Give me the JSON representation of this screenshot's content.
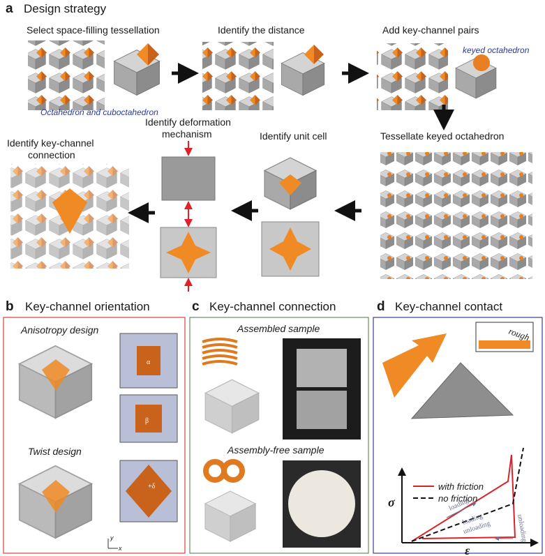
{
  "panel_a": {
    "letter": "a",
    "title": "Design strategy",
    "step1": "Select space-filling tessellation",
    "step1_note": "Octahedron and cuboctahedron",
    "step2": "Identify the distance",
    "step3": "Add key-channel pairs",
    "step3_note": "keyed octahedron",
    "step4": "Tessellate keyed octahedron",
    "step5": "Identify unit cell",
    "step6": [
      "Identify deformation",
      "mechanism"
    ],
    "step7": [
      "Identify key-channel",
      "connection"
    ]
  },
  "panel_b": {
    "letter": "b",
    "title": "Key-channel orientation",
    "designs": [
      "Anisotropy design",
      "Twist design"
    ],
    "angles": [
      "α",
      "β",
      "+δ"
    ],
    "axes": [
      "y",
      "x"
    ]
  },
  "panel_c": {
    "letter": "c",
    "title": "Key-channel connection",
    "samples": [
      "Assembled sample",
      "Assembly-free sample"
    ]
  },
  "panel_d": {
    "letter": "d",
    "title": "Key-channel contact",
    "inset": "rough",
    "legend": [
      "with friction",
      "no friction"
    ],
    "y_axis": "σ",
    "x_axis": "ε",
    "curve_labels": [
      "loading",
      "loading",
      "unloading",
      "unloading"
    ]
  }
}
